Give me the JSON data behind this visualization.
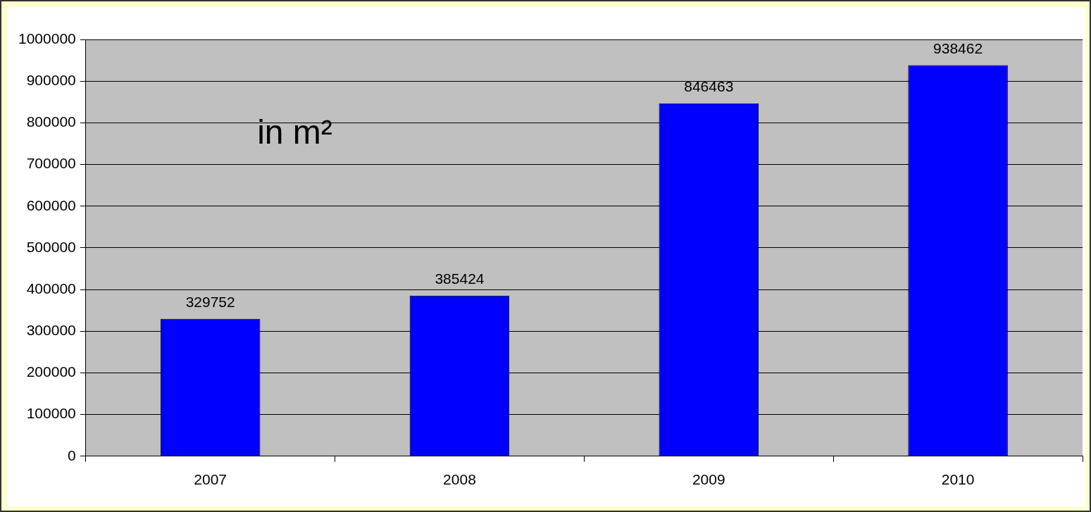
{
  "chart_data": {
    "type": "bar",
    "categories": [
      "2007",
      "2008",
      "2009",
      "2010"
    ],
    "values": [
      329752,
      385424,
      846463,
      938462
    ],
    "color": "#0000ff",
    "ylim": [
      0,
      1000000
    ],
    "yticks": [
      0,
      100000,
      200000,
      300000,
      400000,
      500000,
      600000,
      700000,
      800000,
      900000,
      1000000
    ],
    "grid": "y",
    "data_labels": true,
    "annotations": [
      "in m²"
    ]
  }
}
